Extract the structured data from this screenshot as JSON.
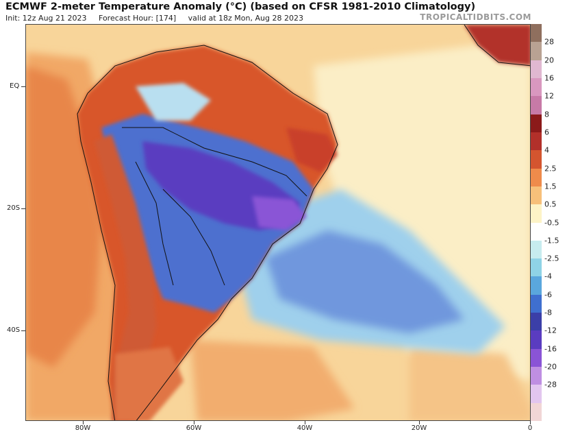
{
  "header": {
    "title": "ECMWF 2-meter Temperature Anomaly (°C) (based on CFSR 1981-2010 Climatology)",
    "init": "Init: 12z Aug 21 2023",
    "forecast_hour": "Forecast Hour: [174]",
    "valid": "valid at 18z Mon, Aug 28 2023",
    "brand": "TROPICALTIDBITS.COM"
  },
  "axes": {
    "lat_labels": [
      "EQ",
      "20S",
      "40S"
    ],
    "lon_labels": [
      "80W",
      "60W",
      "40W",
      "20W",
      "0"
    ]
  },
  "colorbar": {
    "labels": [
      "28",
      "20",
      "16",
      "12",
      "8",
      "6",
      "4",
      "2.5",
      "1.5",
      "0.5",
      "-0.5",
      "-1.5",
      "-2.5",
      "-4",
      "-6",
      "-8",
      "-12",
      "-16",
      "-20",
      "-28"
    ],
    "colors": [
      "#8f6f5e",
      "#b9a293",
      "#e0b8d1",
      "#d998bf",
      "#c77aa7",
      "#8b1a1a",
      "#b2302a",
      "#d4552f",
      "#ef8b4b",
      "#f7c07a",
      "#fdf3c6",
      "#ffffff",
      "#c7ecef",
      "#8fd3e6",
      "#5aa7dd",
      "#3f6fcf",
      "#3b3fa8",
      "#5a3cc0",
      "#8a54d6",
      "#bf8fe2",
      "#e2c6ef",
      "#f1d6d6"
    ]
  },
  "colors": {
    "ocean_warm": "#f6c98a",
    "warm_strong": "#d8562c",
    "cold": "#5b7fd6",
    "cold_strong": "#4636b0",
    "cool_light": "#b9dff0",
    "border": "#111111"
  }
}
